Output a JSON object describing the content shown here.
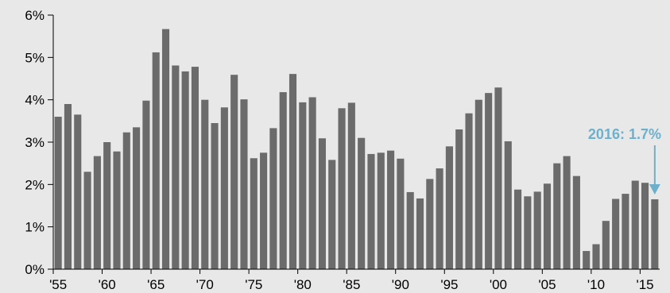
{
  "chart_data": {
    "type": "bar",
    "x": [
      1955,
      1956,
      1957,
      1958,
      1959,
      1960,
      1961,
      1962,
      1963,
      1964,
      1965,
      1966,
      1967,
      1968,
      1969,
      1970,
      1971,
      1972,
      1973,
      1974,
      1975,
      1976,
      1977,
      1978,
      1979,
      1980,
      1981,
      1982,
      1983,
      1984,
      1985,
      1986,
      1987,
      1988,
      1989,
      1990,
      1991,
      1992,
      1993,
      1994,
      1995,
      1996,
      1997,
      1998,
      1999,
      2000,
      2001,
      2002,
      2003,
      2004,
      2005,
      2006,
      2007,
      2008,
      2009,
      2010,
      2011,
      2012,
      2013,
      2014,
      2015,
      2016
    ],
    "values": [
      3.6,
      3.9,
      3.65,
      2.3,
      2.67,
      3.0,
      2.78,
      3.23,
      3.35,
      3.98,
      5.12,
      5.67,
      4.81,
      4.67,
      4.78,
      4.0,
      3.45,
      3.82,
      4.59,
      4.01,
      2.62,
      2.75,
      3.33,
      4.18,
      4.61,
      3.94,
      4.06,
      3.09,
      2.58,
      3.8,
      3.93,
      3.1,
      2.72,
      2.75,
      2.8,
      2.61,
      1.82,
      1.67,
      2.13,
      2.38,
      2.9,
      3.3,
      3.68,
      4.0,
      4.16,
      4.29,
      3.02,
      1.88,
      1.72,
      1.83,
      2.02,
      2.5,
      2.67,
      2.2,
      0.43,
      0.59,
      1.14,
      1.66,
      1.78,
      2.09,
      2.04,
      1.65
    ],
    "x_tick_labels": [
      "'55",
      "'60",
      "'65",
      "'70",
      "'75",
      "'80",
      "'85",
      "'90",
      "'95",
      "'00",
      "'05",
      "'10",
      "'15"
    ],
    "y_tick_labels": [
      "0%",
      "1%",
      "2%",
      "3%",
      "4%",
      "5%",
      "6%"
    ],
    "ylim": [
      0,
      6
    ],
    "bar_color": "#6b6b6b",
    "annotation": {
      "text": "2016: 1.7%",
      "color": "#6eb0cc",
      "x": 2016
    },
    "grid": false,
    "title": "",
    "xlabel": "",
    "ylabel": ""
  }
}
